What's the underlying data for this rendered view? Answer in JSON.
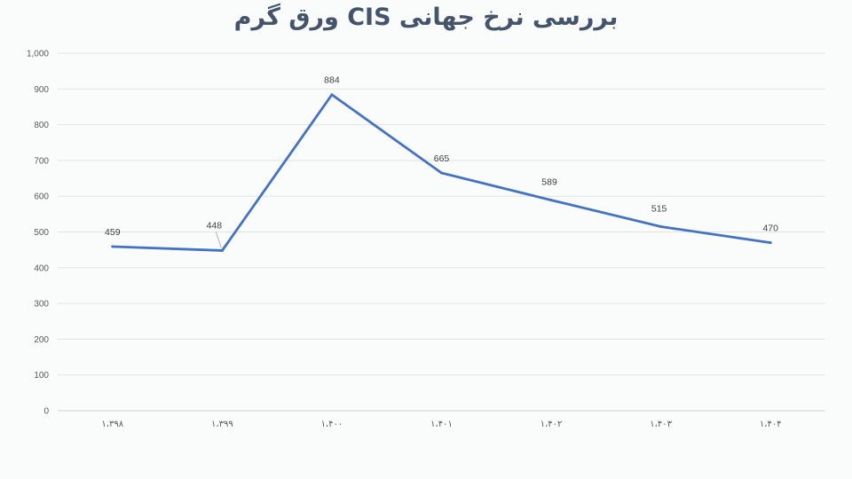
{
  "chart_data": {
    "type": "line",
    "title": "بررسی نرخ جهانی CIS ورق گرم",
    "categories": [
      "۱،۳۹۸",
      "۱،۳۹۹",
      "۱،۴۰۰",
      "۱،۴۰۱",
      "۱،۴۰۲",
      "۱،۴۰۳",
      "۱،۴۰۴"
    ],
    "series": [
      {
        "values": [
          459,
          448,
          884,
          665,
          589,
          515,
          470
        ],
        "color": "#4472c4"
      }
    ],
    "data_labels": [
      "459",
      "448",
      "884",
      "665",
      "589",
      "515",
      "470"
    ],
    "ylim": [
      0,
      1000
    ],
    "yticks": [
      "0",
      "100",
      "200",
      "300",
      "400",
      "500",
      "600",
      "700",
      "800",
      "900",
      "1,000"
    ],
    "grid": true,
    "legend": "none"
  }
}
